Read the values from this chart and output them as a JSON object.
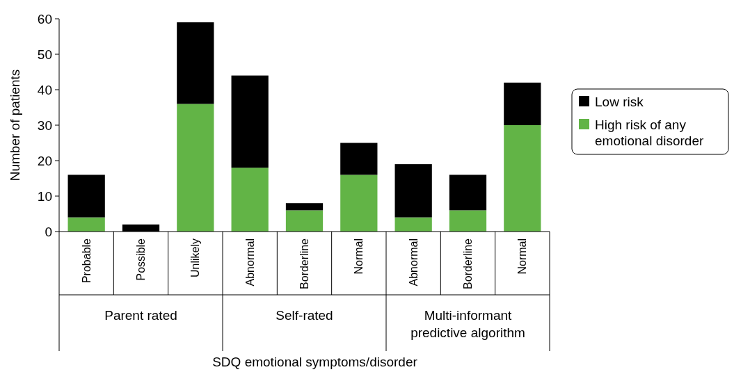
{
  "chart_data": {
    "type": "bar",
    "stacked": true,
    "xlabel": "SDQ emotional symptoms/disorder",
    "ylabel": "Number of patients",
    "categories": [
      "Probable",
      "Possible",
      "Unlikely",
      "Abnormal",
      "Borderline",
      "Normal",
      "Abnormal",
      "Borderline",
      "Normal"
    ],
    "series": [
      {
        "name": "High risk of any emotional disorder",
        "color": "#62b446",
        "values": [
          4,
          0,
          36,
          18,
          6,
          16,
          4,
          6,
          30
        ]
      },
      {
        "name": "Low risk",
        "color": "#000000",
        "values": [
          12,
          2,
          23,
          26,
          2,
          9,
          15,
          10,
          12
        ]
      }
    ],
    "annotations": [
      "Parent rated",
      "Self-rated",
      "Multi-informant predictive algorithm"
    ],
    "ylim": [
      0,
      60
    ],
    "yticks": [
      0,
      10,
      20,
      30,
      40,
      50,
      60
    ],
    "grid": false,
    "legend": "right"
  }
}
